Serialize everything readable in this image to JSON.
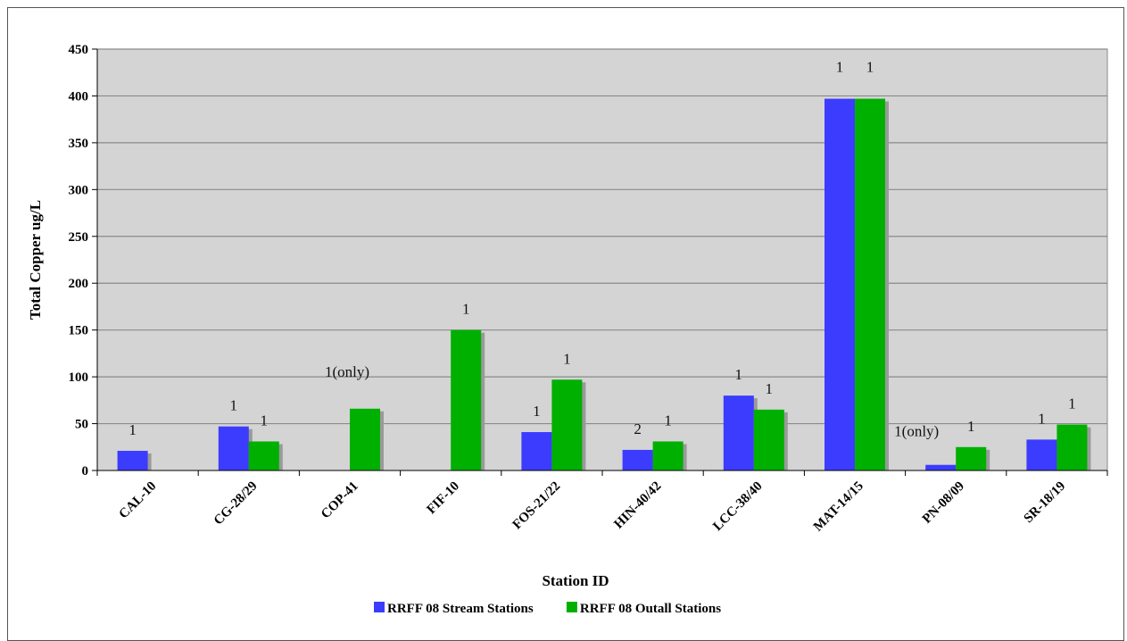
{
  "chart_data": {
    "type": "bar",
    "title": "",
    "xlabel": "Station ID",
    "ylabel": "Total Copper ug/L",
    "ylim": [
      0,
      450
    ],
    "yticks": [
      0,
      50,
      100,
      150,
      200,
      250,
      300,
      350,
      400,
      450
    ],
    "categories": [
      "CAL-10",
      "CG-28/29",
      "COP-41",
      "FIF-10",
      "FOS-21/22",
      "HIN-40/42",
      "LCC-38/40",
      "MAT-14/15",
      "PN-08/09",
      "SR-18/19"
    ],
    "series": [
      {
        "name": "RRFF 08 Stream Stations",
        "color": "#3c3cff",
        "values": [
          21,
          47,
          null,
          null,
          41,
          22,
          80,
          397,
          6,
          33
        ],
        "labels": [
          "1",
          "1",
          "",
          "",
          "1",
          "2",
          "1",
          "1",
          "1(only)",
          "1"
        ]
      },
      {
        "name": "RRFF 08 Outall Stations",
        "color": "#00b000",
        "values": [
          null,
          31,
          66,
          150,
          97,
          31,
          65,
          397,
          25,
          49
        ],
        "labels": [
          "",
          "1",
          "1(only)",
          "1",
          "1",
          "1",
          "1",
          "1",
          "1",
          "1"
        ]
      }
    ],
    "grid": true,
    "plot_background": "#d4d4d4",
    "legend_position": "bottom"
  }
}
